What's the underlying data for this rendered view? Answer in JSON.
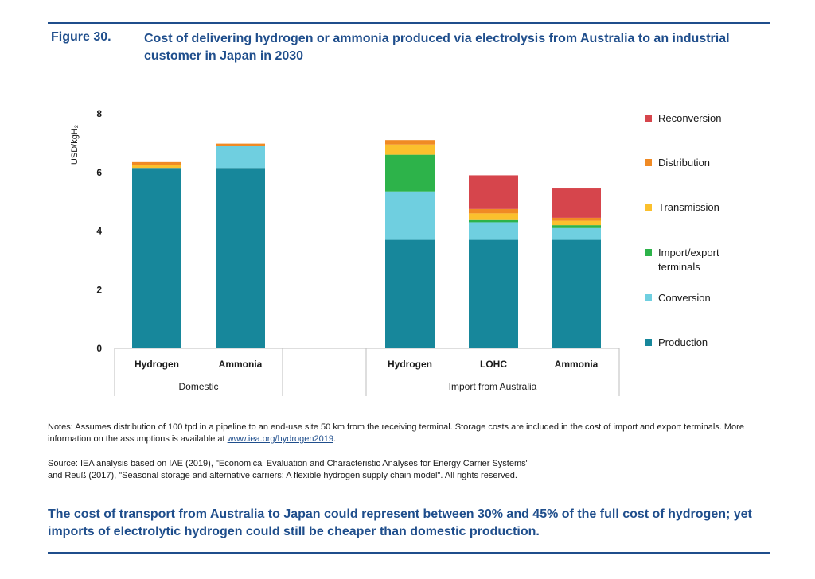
{
  "figure": {
    "label": "Figure 30.",
    "title": "Cost of delivering hydrogen or ammonia produced via electrolysis from Australia to an industrial customer in Japan in 2030"
  },
  "chart_data": {
    "type": "bar",
    "stacked": true,
    "ylabel": "USD/kgH₂",
    "ylim": [
      0,
      8
    ],
    "yticks": [
      0,
      2,
      4,
      6,
      8
    ],
    "grid": false,
    "legend_position": "right",
    "groups": [
      {
        "label": "Domestic",
        "categories": [
          "Hydrogen",
          "Ammonia"
        ]
      },
      {
        "label": "Import from Australia",
        "categories": [
          "Hydrogen",
          "LOHC",
          "Ammonia"
        ]
      }
    ],
    "categories": [
      "Hydrogen",
      "Ammonia",
      "Hydrogen",
      "LOHC",
      "Ammonia"
    ],
    "series": [
      {
        "name": "Production",
        "color": "#17879b",
        "values": [
          6.15,
          6.15,
          3.7,
          3.7,
          3.7
        ]
      },
      {
        "name": "Conversion",
        "color": "#6fcfe0",
        "values": [
          0.0,
          0.75,
          1.65,
          0.6,
          0.4
        ]
      },
      {
        "name": "Import/export terminals",
        "color": "#2db34a",
        "values": [
          0.0,
          0.0,
          1.25,
          0.1,
          0.1
        ]
      },
      {
        "name": "Transmission",
        "color": "#fbc02d",
        "values": [
          0.1,
          0.0,
          0.35,
          0.2,
          0.15
        ]
      },
      {
        "name": "Distribution",
        "color": "#f08a24",
        "values": [
          0.1,
          0.08,
          0.15,
          0.15,
          0.1
        ]
      },
      {
        "name": "Reconversion",
        "color": "#d6454c",
        "values": [
          0.0,
          0.0,
          0.0,
          1.15,
          1.0
        ]
      }
    ]
  },
  "legend": {
    "items": [
      {
        "label": "Reconversion",
        "color": "#d6454c"
      },
      {
        "label": "Distribution",
        "color": "#f08a24"
      },
      {
        "label": "Transmission",
        "color": "#fbc02d"
      },
      {
        "label": "Import/export terminals",
        "color": "#2db34a"
      },
      {
        "label": "Conversion",
        "color": "#6fcfe0"
      },
      {
        "label": "Production",
        "color": "#17879b"
      }
    ]
  },
  "notes": {
    "text": "Notes: Assumes distribution of 100 tpd in a pipeline to an end-use site 50 km from the receiving terminal. Storage costs are included in the cost of import and export terminals. More information on the assumptions is available at ",
    "link": "www.iea.org/hydrogen2019",
    "end": "."
  },
  "source": {
    "line1": "Source: IEA analysis based on IAE (2019), \"Economical Evaluation and Characteristic Analyses for Energy Carrier Systems\"",
    "line2": "and Reuß (2017), \"Seasonal storage and alternative carriers: A flexible hydrogen supply chain model\". All rights reserved."
  },
  "caption": "The cost of transport from Australia to Japan could represent between 30% and 45% of the full cost of hydrogen; yet imports of electrolytic hydrogen could still be cheaper than domestic production."
}
